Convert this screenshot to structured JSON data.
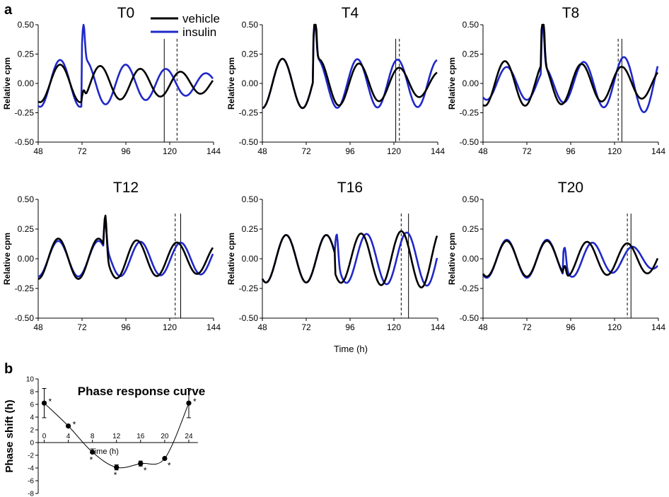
{
  "panel_labels": {
    "a": "a",
    "b": "b"
  },
  "legend": [
    {
      "name": "vehicle",
      "color": "#000000"
    },
    {
      "name": "insulin",
      "color": "#1f28c8"
    }
  ],
  "shared_xlabel": "Time (h)",
  "chart_data": [
    {
      "type": "line",
      "title": "T0",
      "ylabel": "Relative cpm",
      "xlim": [
        48,
        144
      ],
      "ylim": [
        -0.5,
        0.5
      ],
      "xticks": [
        "48",
        "72",
        "96",
        "120",
        "144"
      ],
      "yticks": [
        "0.50",
        "0.25",
        "0.00",
        "-0.25",
        "-0.50"
      ],
      "pulse_time": 72,
      "solid_phase_line": 117,
      "dashed_phase_line": 124,
      "series": [
        {
          "name": "vehicle",
          "color": "#000000",
          "period": 22,
          "amp_start": 0.16,
          "amp_end": 0.08,
          "phase_before": 60,
          "phase_after": 82,
          "spike": 0.08
        },
        {
          "name": "insulin",
          "color": "#1f28c8",
          "period": 22,
          "amp_start": 0.2,
          "amp_end": 0.08,
          "phase_before": 60,
          "phase_after": 74,
          "spike": 0.32
        }
      ]
    },
    {
      "type": "line",
      "title": "T4",
      "ylabel": "Relative cpm",
      "xlim": [
        48,
        144
      ],
      "ylim": [
        -0.5,
        0.5
      ],
      "xticks": [
        "48",
        "72",
        "96",
        "120",
        "144"
      ],
      "yticks": [
        "0.50",
        "0.25",
        "0.00",
        "-0.25",
        "-0.50"
      ],
      "pulse_time": 76,
      "solid_phase_line": 121,
      "dashed_phase_line": 123,
      "series": [
        {
          "name": "vehicle",
          "color": "#000000",
          "period": 22,
          "amp_start": 0.21,
          "amp_end": 0.1,
          "phase_before": 59,
          "phase_after": 101,
          "spike": 0.5
        },
        {
          "name": "insulin",
          "color": "#1f28c8",
          "period": 22,
          "amp_start": 0.21,
          "amp_end": 0.2,
          "phase_before": 59,
          "phase_after": 100,
          "spike": 0.34
        }
      ]
    },
    {
      "type": "line",
      "title": "T8",
      "ylabel": "Relative cpm",
      "xlim": [
        48,
        144
      ],
      "ylim": [
        -0.5,
        0.5
      ],
      "xticks": [
        "48",
        "72",
        "96",
        "120",
        "144"
      ],
      "yticks": [
        "0.50",
        "0.25",
        "0.00",
        "-0.25",
        "-0.50"
      ],
      "pulse_time": 80,
      "solid_phase_line": 124,
      "dashed_phase_line": 122,
      "series": [
        {
          "name": "vehicle",
          "color": "#000000",
          "period": 22,
          "amp_start": 0.19,
          "amp_end": 0.12,
          "phase_before": 60,
          "phase_after": 102,
          "spike": 0.5
        },
        {
          "name": "insulin",
          "color": "#1f28c8",
          "period": 22,
          "amp_start": 0.14,
          "amp_end": 0.26,
          "phase_before": 61,
          "phase_after": 103,
          "spike": 0.38
        }
      ]
    },
    {
      "type": "line",
      "title": "T12",
      "ylabel": "Relative cpm",
      "xlim": [
        48,
        144
      ],
      "ylim": [
        -0.5,
        0.5
      ],
      "xticks": [
        "48",
        "72",
        "96",
        "120",
        "144"
      ],
      "yticks": [
        "0.50",
        "0.25",
        "0.00",
        "-0.25",
        "-0.50"
      ],
      "pulse_time": 84,
      "solid_phase_line": 126,
      "dashed_phase_line": 123,
      "series": [
        {
          "name": "vehicle",
          "color": "#000000",
          "period": 22,
          "amp_start": 0.17,
          "amp_end": 0.12,
          "phase_before": 59,
          "phase_after": 102,
          "spike": 0.33
        },
        {
          "name": "insulin",
          "color": "#1f28c8",
          "period": 22,
          "amp_start": 0.15,
          "amp_end": 0.13,
          "phase_before": 59,
          "phase_after": 104,
          "spike": 0.2
        }
      ]
    },
    {
      "type": "line",
      "title": "T16",
      "ylabel": "Relative cpm",
      "xlim": [
        48,
        144
      ],
      "ylim": [
        -0.5,
        0.5
      ],
      "xticks": [
        "48",
        "72",
        "96",
        "120",
        "144"
      ],
      "yticks": [
        "0.50",
        "0.25",
        "0.00",
        "-0.25",
        "-0.50"
      ],
      "pulse_time": 88,
      "solid_phase_line": 128,
      "dashed_phase_line": 124,
      "series": [
        {
          "name": "vehicle",
          "color": "#000000",
          "period": 22,
          "amp_start": 0.2,
          "amp_end": 0.25,
          "phase_before": 61,
          "phase_after": 102,
          "spike": 0.0
        },
        {
          "name": "insulin",
          "color": "#1f28c8",
          "period": 22,
          "amp_start": 0.2,
          "amp_end": 0.23,
          "phase_before": 61,
          "phase_after": 105,
          "spike": 0.22
        }
      ]
    },
    {
      "type": "line",
      "title": "T20",
      "ylabel": "Relative cpm",
      "xlim": [
        48,
        144
      ],
      "ylim": [
        -0.5,
        0.5
      ],
      "xticks": [
        "48",
        "72",
        "96",
        "120",
        "144"
      ],
      "yticks": [
        "0.50",
        "0.25",
        "0.00",
        "-0.25",
        "-0.50"
      ],
      "pulse_time": 92,
      "solid_phase_line": 129,
      "dashed_phase_line": 127,
      "series": [
        {
          "name": "vehicle",
          "color": "#000000",
          "period": 22,
          "amp_start": 0.15,
          "amp_end": 0.12,
          "phase_before": 61,
          "phase_after": 105,
          "spike": 0.08
        },
        {
          "name": "insulin",
          "color": "#1f28c8",
          "period": 22,
          "amp_start": 0.16,
          "amp_end": 0.08,
          "phase_before": 61,
          "phase_after": 108,
          "spike": 0.15
        }
      ]
    },
    {
      "type": "scatter",
      "title": "Phase response curve",
      "xlabel": "Time (h)",
      "ylabel": "Phase shift (h)",
      "xlim": [
        -1,
        26
      ],
      "ylim": [
        -8,
        10
      ],
      "xticks": [
        "0",
        "4",
        "8",
        "12",
        "16",
        "20",
        "24"
      ],
      "yticks": [
        "10",
        "8",
        "6",
        "4",
        "2",
        "0",
        "-2",
        "-4",
        "-6",
        "-8"
      ],
      "points": [
        {
          "x": 0,
          "y": 6.2,
          "err": 2.3,
          "sig": "*"
        },
        {
          "x": 4,
          "y": 2.6,
          "err": 0,
          "sig": "*"
        },
        {
          "x": 8,
          "y": -1.5,
          "err": 0,
          "sig": "*"
        },
        {
          "x": 12,
          "y": -3.9,
          "err": 0.4,
          "sig": "*"
        },
        {
          "x": 16,
          "y": -3.3,
          "err": 0.4,
          "sig": "*"
        },
        {
          "x": 20,
          "y": -2.5,
          "err": 0,
          "sig": "*"
        },
        {
          "x": 24,
          "y": 6.2,
          "err": 2.3,
          "sig": "*"
        }
      ]
    }
  ]
}
